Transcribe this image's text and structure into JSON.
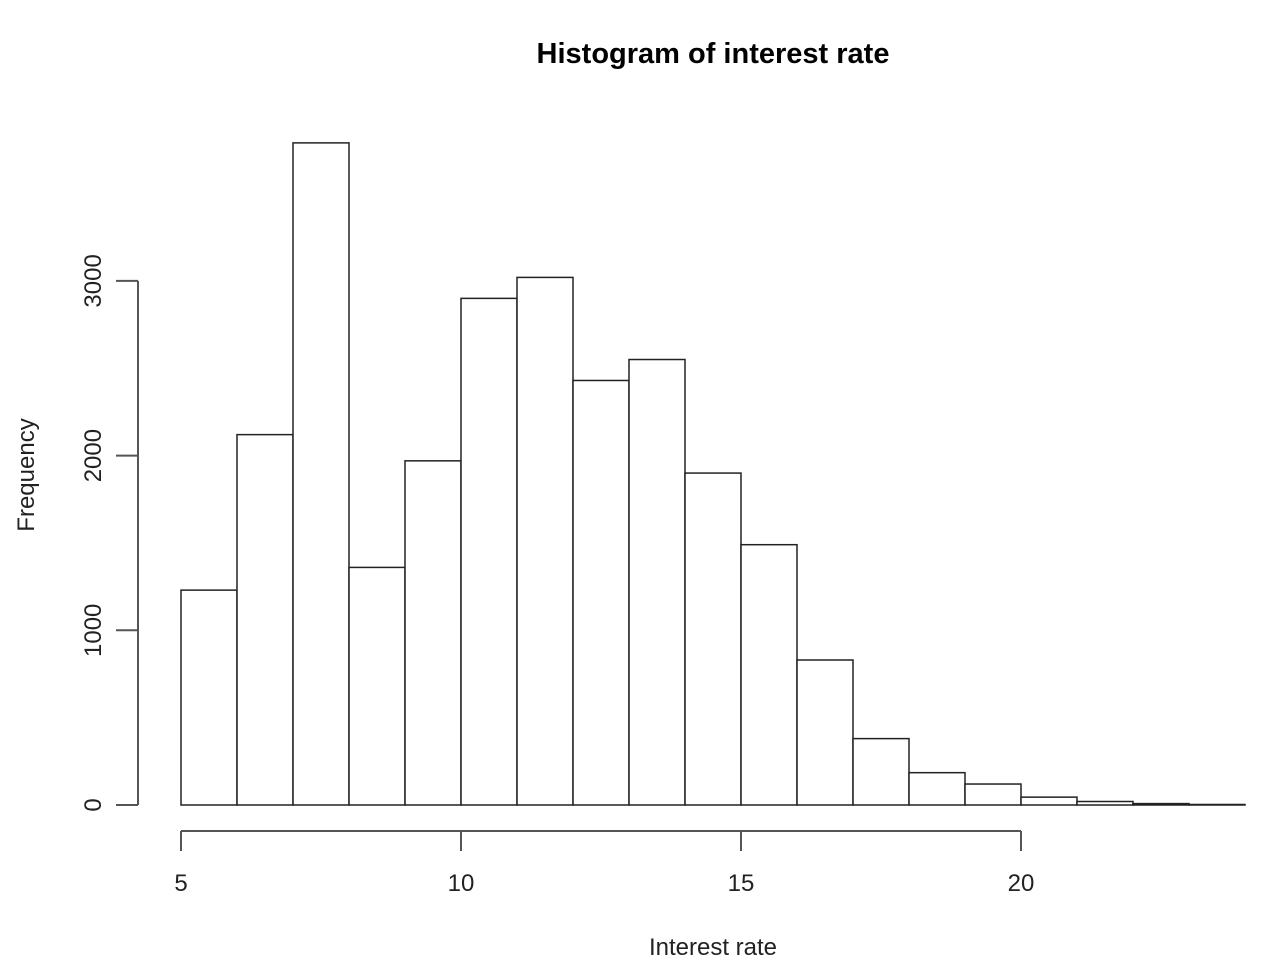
{
  "chart_data": {
    "type": "bar",
    "title": "Histogram of interest rate",
    "xlabel": "Interest rate",
    "ylabel": "Frequency",
    "x_ticks": [
      5,
      10,
      15,
      20
    ],
    "y_ticks": [
      0,
      1000,
      2000,
      3000
    ],
    "bins": [
      {
        "x0": 5,
        "x1": 6,
        "count": 1230
      },
      {
        "x0": 6,
        "x1": 7,
        "count": 2120
      },
      {
        "x0": 7,
        "x1": 8,
        "count": 3790
      },
      {
        "x0": 8,
        "x1": 9,
        "count": 1360
      },
      {
        "x0": 9,
        "x1": 10,
        "count": 1970
      },
      {
        "x0": 10,
        "x1": 11,
        "count": 2900
      },
      {
        "x0": 11,
        "x1": 12,
        "count": 3020
      },
      {
        "x0": 12,
        "x1": 13,
        "count": 2430
      },
      {
        "x0": 13,
        "x1": 14,
        "count": 2550
      },
      {
        "x0": 14,
        "x1": 15,
        "count": 1900
      },
      {
        "x0": 15,
        "x1": 16,
        "count": 1490
      },
      {
        "x0": 16,
        "x1": 17,
        "count": 830
      },
      {
        "x0": 17,
        "x1": 18,
        "count": 380
      },
      {
        "x0": 18,
        "x1": 19,
        "count": 185
      },
      {
        "x0": 19,
        "x1": 20,
        "count": 120
      },
      {
        "x0": 20,
        "x1": 21,
        "count": 45
      },
      {
        "x0": 21,
        "x1": 22,
        "count": 20
      },
      {
        "x0": 22,
        "x1": 23,
        "count": 8
      },
      {
        "x0": 23,
        "x1": 24,
        "count": 3
      }
    ],
    "xlim": [
      5,
      24
    ],
    "ylim": [
      0,
      3790
    ],
    "grid": false
  }
}
